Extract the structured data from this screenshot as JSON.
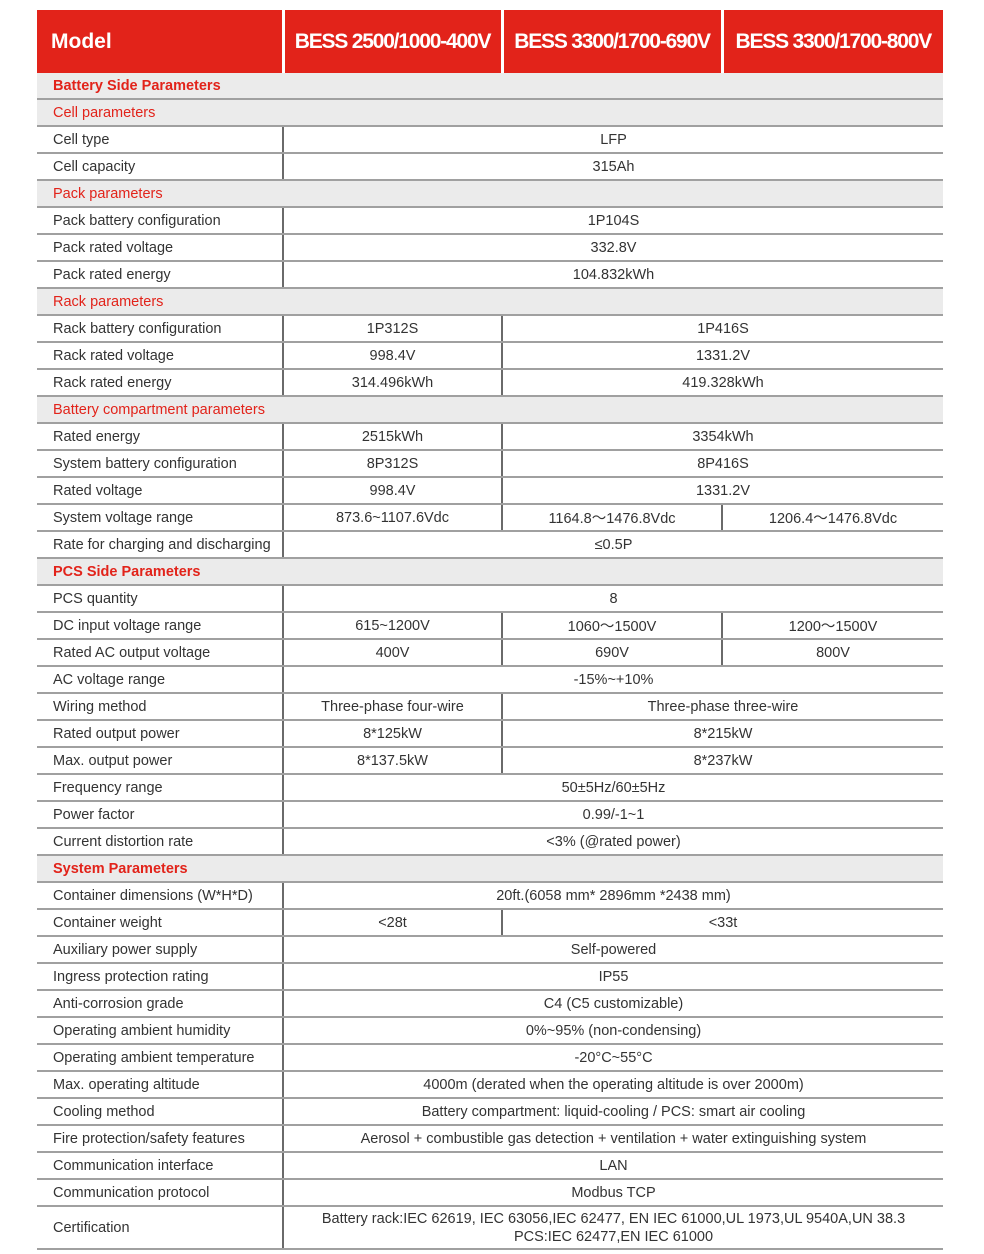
{
  "header": {
    "model_label": "Model",
    "models": [
      "BESS 2500/1000-400V",
      "BESS 3300/1700-690V",
      "BESS 3300/1700-800V"
    ]
  },
  "colors": {
    "accent": "#e2231a",
    "section_bg": "#ebebeb"
  },
  "rows": [
    {
      "section": "Battery Side Parameters",
      "major": true
    },
    {
      "section": "Cell parameters"
    },
    {
      "label": "Cell type",
      "values": [
        "LFP"
      ]
    },
    {
      "label": "Cell capacity",
      "values": [
        "315Ah"
      ]
    },
    {
      "section": "Pack parameters"
    },
    {
      "label": "Pack battery configuration",
      "values": [
        "1P104S"
      ]
    },
    {
      "label": "Pack rated voltage",
      "values": [
        "332.8V"
      ]
    },
    {
      "label": "Pack rated energy",
      "values": [
        "104.832kWh"
      ]
    },
    {
      "section": "Rack parameters"
    },
    {
      "label": "Rack battery configuration",
      "values": [
        "1P312S",
        "1P416S"
      ]
    },
    {
      "label": "Rack rated voltage",
      "values": [
        "998.4V",
        "1331.2V"
      ]
    },
    {
      "label": "Rack rated energy",
      "values": [
        "314.496kWh",
        "419.328kWh"
      ]
    },
    {
      "section": "Battery compartment parameters"
    },
    {
      "label": "Rated energy",
      "values": [
        "2515kWh",
        "3354kWh"
      ]
    },
    {
      "label": "System battery configuration",
      "values": [
        "8P312S",
        "8P416S"
      ]
    },
    {
      "label": "Rated voltage",
      "values": [
        "998.4V",
        "1331.2V"
      ]
    },
    {
      "label": "System voltage range",
      "values": [
        "873.6~1107.6Vdc",
        "1164.8～1476.8Vdc",
        "1206.4～1476.8Vdc"
      ]
    },
    {
      "label": "Rate for charging and discharging",
      "values": [
        "≤0.5P"
      ]
    },
    {
      "section": "PCS Side Parameters",
      "major": true
    },
    {
      "label": "PCS quantity",
      "values": [
        "8"
      ]
    },
    {
      "label": "DC input voltage range",
      "values": [
        "615~1200V",
        "1060～1500V",
        "1200～1500V"
      ]
    },
    {
      "label": "Rated AC output voltage",
      "values": [
        "400V",
        "690V",
        "800V"
      ]
    },
    {
      "label": "AC voltage range",
      "values": [
        "-15%~+10%"
      ]
    },
    {
      "label": "Wiring method",
      "values": [
        "Three-phase four-wire",
        "Three-phase three-wire"
      ]
    },
    {
      "label": "Rated output power",
      "values": [
        "8*125kW",
        "8*215kW"
      ]
    },
    {
      "label": "Max. output power",
      "values": [
        "8*137.5kW",
        "8*237kW"
      ]
    },
    {
      "label": "Frequency range",
      "values": [
        "50±5Hz/60±5Hz"
      ]
    },
    {
      "label": "Power factor",
      "values": [
        "0.99/-1~1"
      ]
    },
    {
      "label": "Current distortion rate",
      "values": [
        "<3% (@rated power)"
      ]
    },
    {
      "section": "System Parameters",
      "major": true
    },
    {
      "label": "Container dimensions (W*H*D)",
      "values": [
        "20ft.(6058 mm* 2896mm *2438 mm)"
      ]
    },
    {
      "label": "Container weight",
      "values": [
        "<28t",
        "<33t"
      ]
    },
    {
      "label": "Auxiliary power supply",
      "values": [
        "Self-powered"
      ]
    },
    {
      "label": "Ingress protection rating",
      "values": [
        "IP55"
      ]
    },
    {
      "label": "Anti-corrosion grade",
      "values": [
        "C4 (C5 customizable)"
      ]
    },
    {
      "label": "Operating ambient humidity",
      "values": [
        "0%~95% (non-condensing)"
      ]
    },
    {
      "label": "Operating ambient temperature",
      "values": [
        "-20°C~55°C"
      ]
    },
    {
      "label": "Max. operating altitude",
      "values": [
        "4000m (derated when the operating altitude is over 2000m)"
      ]
    },
    {
      "label": "Cooling method",
      "values": [
        "Battery compartment: liquid-cooling / PCS: smart air cooling"
      ]
    },
    {
      "label": "Fire protection/safety features",
      "values": [
        "Aerosol + combustible gas detection + ventilation + water extinguishing system"
      ]
    },
    {
      "label": "Communication interface",
      "values": [
        "LAN"
      ]
    },
    {
      "label": "Communication protocol",
      "values": [
        "Modbus TCP"
      ]
    },
    {
      "label": "Certification",
      "values": [
        "Battery rack:IEC 62619, IEC 63056,IEC 62477, EN IEC 61000,UL 1973,UL 9540A,UN 38.3",
        "PCS:IEC 62477,EN IEC 61000"
      ],
      "multiline": true
    }
  ]
}
